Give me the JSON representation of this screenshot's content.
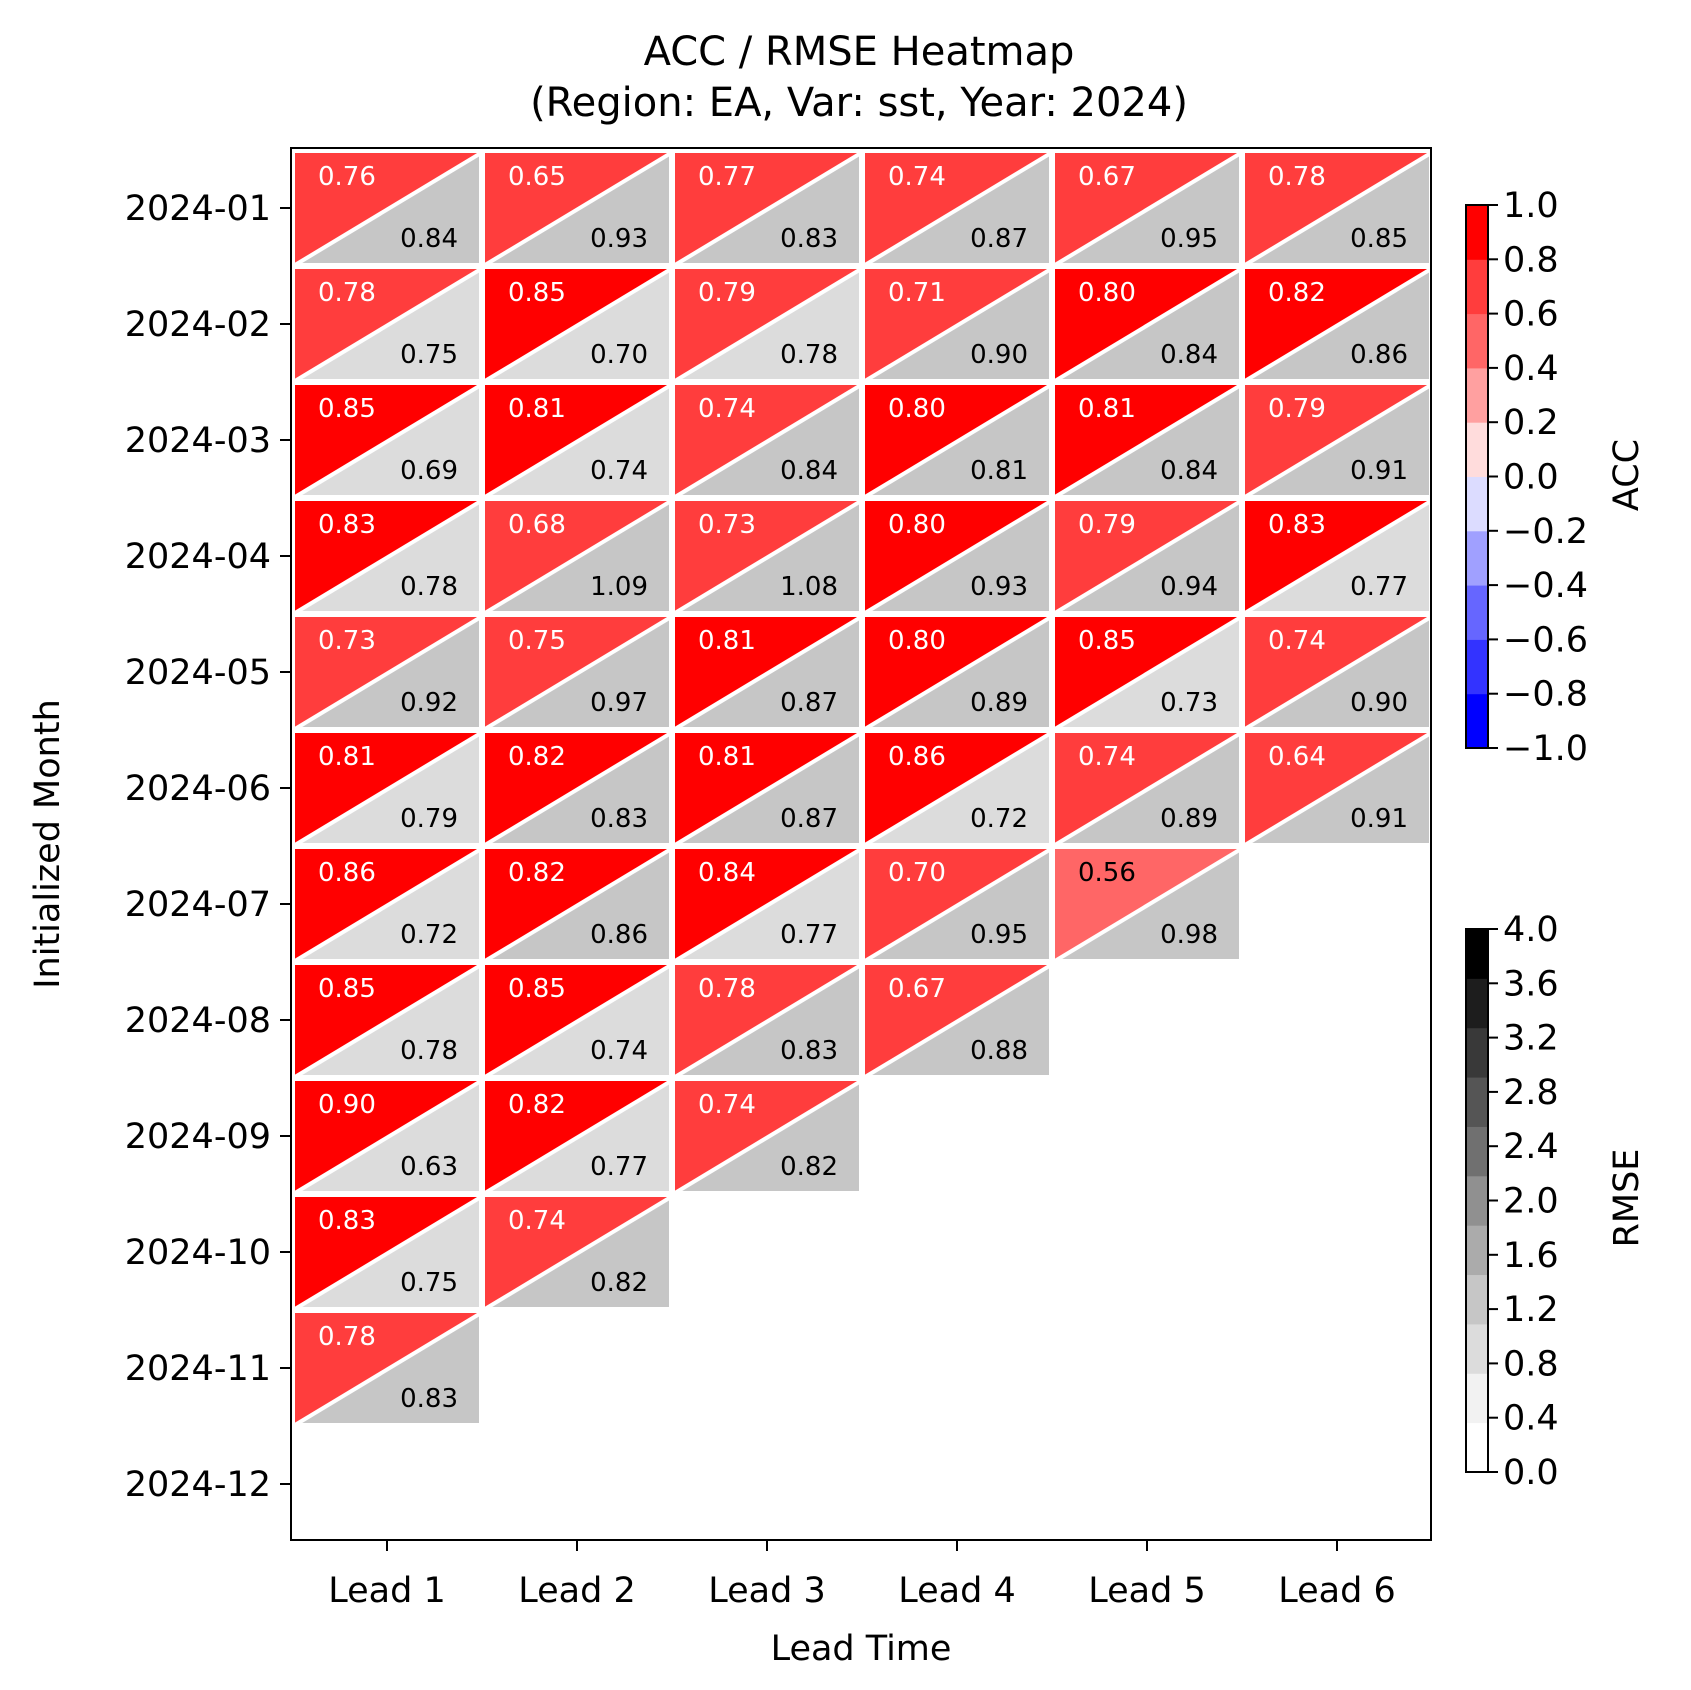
{
  "chart_data": {
    "type": "heatmap",
    "title": "ACC / RMSE Heatmap",
    "subtitle": "(Region: EA, Var: sst, Year: 2024)",
    "xlabel": "Lead Time",
    "ylabel": "Initialized Month",
    "x_categories": [
      "Lead 1",
      "Lead 2",
      "Lead 3",
      "Lead 4",
      "Lead 5",
      "Lead 6"
    ],
    "y_categories": [
      "2024-01",
      "2024-02",
      "2024-03",
      "2024-04",
      "2024-05",
      "2024-06",
      "2024-07",
      "2024-08",
      "2024-09",
      "2024-10",
      "2024-11",
      "2024-12"
    ],
    "acc": [
      [
        0.76,
        0.65,
        0.77,
        0.74,
        0.67,
        0.78
      ],
      [
        0.78,
        0.85,
        0.79,
        0.71,
        0.8,
        0.82
      ],
      [
        0.85,
        0.81,
        0.74,
        0.8,
        0.81,
        0.79
      ],
      [
        0.83,
        0.68,
        0.73,
        0.8,
        0.79,
        0.83
      ],
      [
        0.73,
        0.75,
        0.81,
        0.8,
        0.85,
        0.74
      ],
      [
        0.81,
        0.82,
        0.81,
        0.86,
        0.74,
        0.64
      ],
      [
        0.86,
        0.82,
        0.84,
        0.7,
        0.56,
        null
      ],
      [
        0.85,
        0.85,
        0.78,
        0.67,
        null,
        null
      ],
      [
        0.9,
        0.82,
        0.74,
        null,
        null,
        null
      ],
      [
        0.83,
        0.74,
        null,
        null,
        null,
        null
      ],
      [
        0.78,
        null,
        null,
        null,
        null,
        null
      ],
      [
        null,
        null,
        null,
        null,
        null,
        null
      ]
    ],
    "rmse": [
      [
        0.84,
        0.93,
        0.83,
        0.87,
        0.95,
        0.85
      ],
      [
        0.75,
        0.7,
        0.78,
        0.9,
        0.84,
        0.86
      ],
      [
        0.69,
        0.74,
        0.84,
        0.81,
        0.84,
        0.91
      ],
      [
        0.78,
        1.09,
        1.08,
        0.93,
        0.94,
        0.77
      ],
      [
        0.92,
        0.97,
        0.87,
        0.89,
        0.73,
        0.9
      ],
      [
        0.79,
        0.83,
        0.87,
        0.72,
        0.89,
        0.91
      ],
      [
        0.72,
        0.86,
        0.77,
        0.95,
        0.98,
        null
      ],
      [
        0.78,
        0.74,
        0.83,
        0.88,
        null,
        null
      ],
      [
        0.63,
        0.77,
        0.82,
        null,
        null,
        null
      ],
      [
        0.75,
        0.82,
        null,
        null,
        null,
        null
      ],
      [
        0.83,
        null,
        null,
        null,
        null,
        null
      ],
      [
        null,
        null,
        null,
        null,
        null,
        null
      ]
    ],
    "acc_colorbar": {
      "label": "ACC",
      "range": [
        -1.0,
        1.0
      ],
      "ticks": [
        "1.0",
        "0.8",
        "0.6",
        "0.4",
        "0.2",
        "0.0",
        "−0.2",
        "−0.4",
        "−0.6",
        "−0.8",
        "−1.0"
      ],
      "tick_values": [
        1.0,
        0.8,
        0.6,
        0.4,
        0.2,
        0.0,
        -0.2,
        -0.4,
        -0.6,
        -0.8,
        -1.0
      ],
      "colors_low_to_high": [
        "#0000ff",
        "#3333ff",
        "#6666ff",
        "#a0a0ff",
        "#dcdcff",
        "#ffdcdc",
        "#ffa0a0",
        "#ff6666",
        "#ff3d3d",
        "#ff0000"
      ]
    },
    "rmse_colorbar": {
      "label": "RMSE",
      "range": [
        0.0,
        4.0
      ],
      "ticks": [
        "4.0",
        "3.6",
        "3.2",
        "2.8",
        "2.4",
        "2.0",
        "1.6",
        "1.2",
        "0.8",
        "0.4",
        "0.0"
      ],
      "tick_values": [
        4.0,
        3.6,
        3.2,
        2.8,
        2.4,
        2.0,
        1.6,
        1.2,
        0.8,
        0.4,
        0.0
      ],
      "colors_low_to_high": [
        "#ffffff",
        "#f2f2f2",
        "#dcdcdc",
        "#c6c6c6",
        "#ababab",
        "#909090",
        "#707070",
        "#555555",
        "#393939",
        "#1d1d1d",
        "#000000"
      ]
    }
  }
}
